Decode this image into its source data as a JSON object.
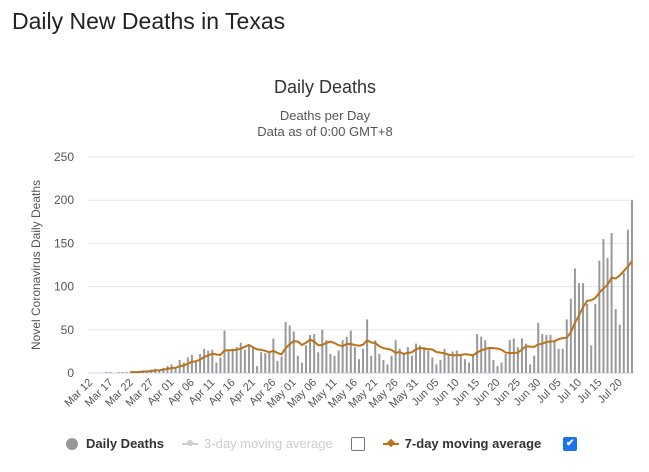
{
  "page": {
    "title": "Daily New Deaths in Texas"
  },
  "legend": {
    "daily": "Daily Deaths",
    "avg3": "3-day moving average",
    "avg3_checked": false,
    "avg7": "7-day moving average",
    "avg7_checked": true
  },
  "colors": {
    "bars": "#999999",
    "avg7": "#b8731b",
    "avg3": "#cccccc",
    "grid": "#e6e6e6",
    "checkbox": "#1a73e8"
  },
  "chart_data": {
    "type": "bar",
    "title": "Daily Deaths",
    "subtitle": [
      "Deaths per Day",
      "Data as of 0:00 GMT+8"
    ],
    "ylabel": "Novel Coronavirus Daily Deaths",
    "xlabel": "",
    "ylim": [
      0,
      250
    ],
    "yticks": [
      0,
      50,
      100,
      150,
      200,
      250
    ],
    "grid": true,
    "legend_position": "bottom",
    "x_start": "Mar 12",
    "x_end": "Jul 23",
    "xtick_labels": [
      "Mar 12",
      "Mar 17",
      "Mar 22",
      "Mar 27",
      "Apr 01",
      "Apr 06",
      "Apr 11",
      "Apr 16",
      "Apr 21",
      "Apr 26",
      "May 01",
      "May 06",
      "May 11",
      "May 16",
      "May 21",
      "May 26",
      "May 31",
      "Jun 05",
      "Jun 10",
      "Jun 15",
      "Jun 20",
      "Jun 25",
      "Jun 30",
      "Jul 05",
      "Jul 10",
      "Jul 15",
      "Jul 20"
    ],
    "series": [
      {
        "name": "Daily Deaths",
        "type": "bar",
        "values": [
          0,
          0,
          0,
          0,
          1,
          1,
          0,
          1,
          1,
          1,
          2,
          1,
          2,
          3,
          3,
          4,
          5,
          4,
          6,
          8,
          10,
          6,
          15,
          12,
          18,
          21,
          14,
          22,
          28,
          26,
          27,
          12,
          18,
          49,
          25,
          28,
          30,
          35,
          27,
          33,
          30,
          8,
          24,
          23,
          23,
          40,
          14,
          19,
          59,
          55,
          48,
          20,
          12,
          32,
          44,
          45,
          24,
          50,
          38,
          22,
          20,
          26,
          38,
          42,
          49,
          30,
          16,
          28,
          62,
          20,
          38,
          22,
          15,
          10,
          20,
          38,
          28,
          22,
          30,
          20,
          34,
          32,
          30,
          26,
          18,
          10,
          15,
          28,
          22,
          25,
          26,
          20,
          16,
          12,
          22,
          45,
          42,
          38,
          28,
          15,
          8,
          12,
          22,
          38,
          40,
          30,
          40,
          34,
          10,
          20,
          58,
          45,
          44,
          44,
          36,
          28,
          28,
          62,
          86,
          121,
          104,
          104,
          80,
          32,
          80,
          130,
          155,
          133,
          162,
          74,
          56,
          116,
          166,
          200
        ]
      },
      {
        "name": "7-day moving average",
        "type": "line",
        "derived_from": "Daily Deaths"
      }
    ]
  }
}
